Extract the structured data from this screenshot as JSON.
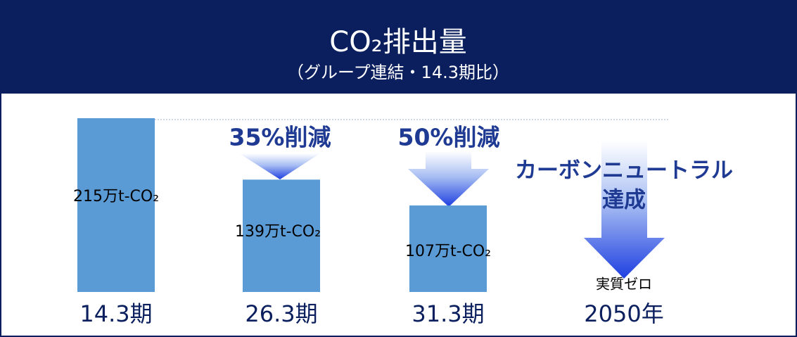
{
  "chart_data": {
    "type": "bar",
    "title": "CO₂排出量",
    "subtitle": "（グループ連結・14.3期比）",
    "categories": [
      "14.3期",
      "26.3期",
      "31.3期",
      "2050年"
    ],
    "values": [
      215,
      139,
      107,
      0
    ],
    "value_labels": [
      "215万t-CO₂",
      "139万t-CO₂",
      "107万t-CO₂",
      "実質ゼロ"
    ],
    "color": "#5b9bd5",
    "annotations": [
      "35%削減",
      "50%削減",
      "カーボンニュートラル",
      "達成"
    ]
  }
}
